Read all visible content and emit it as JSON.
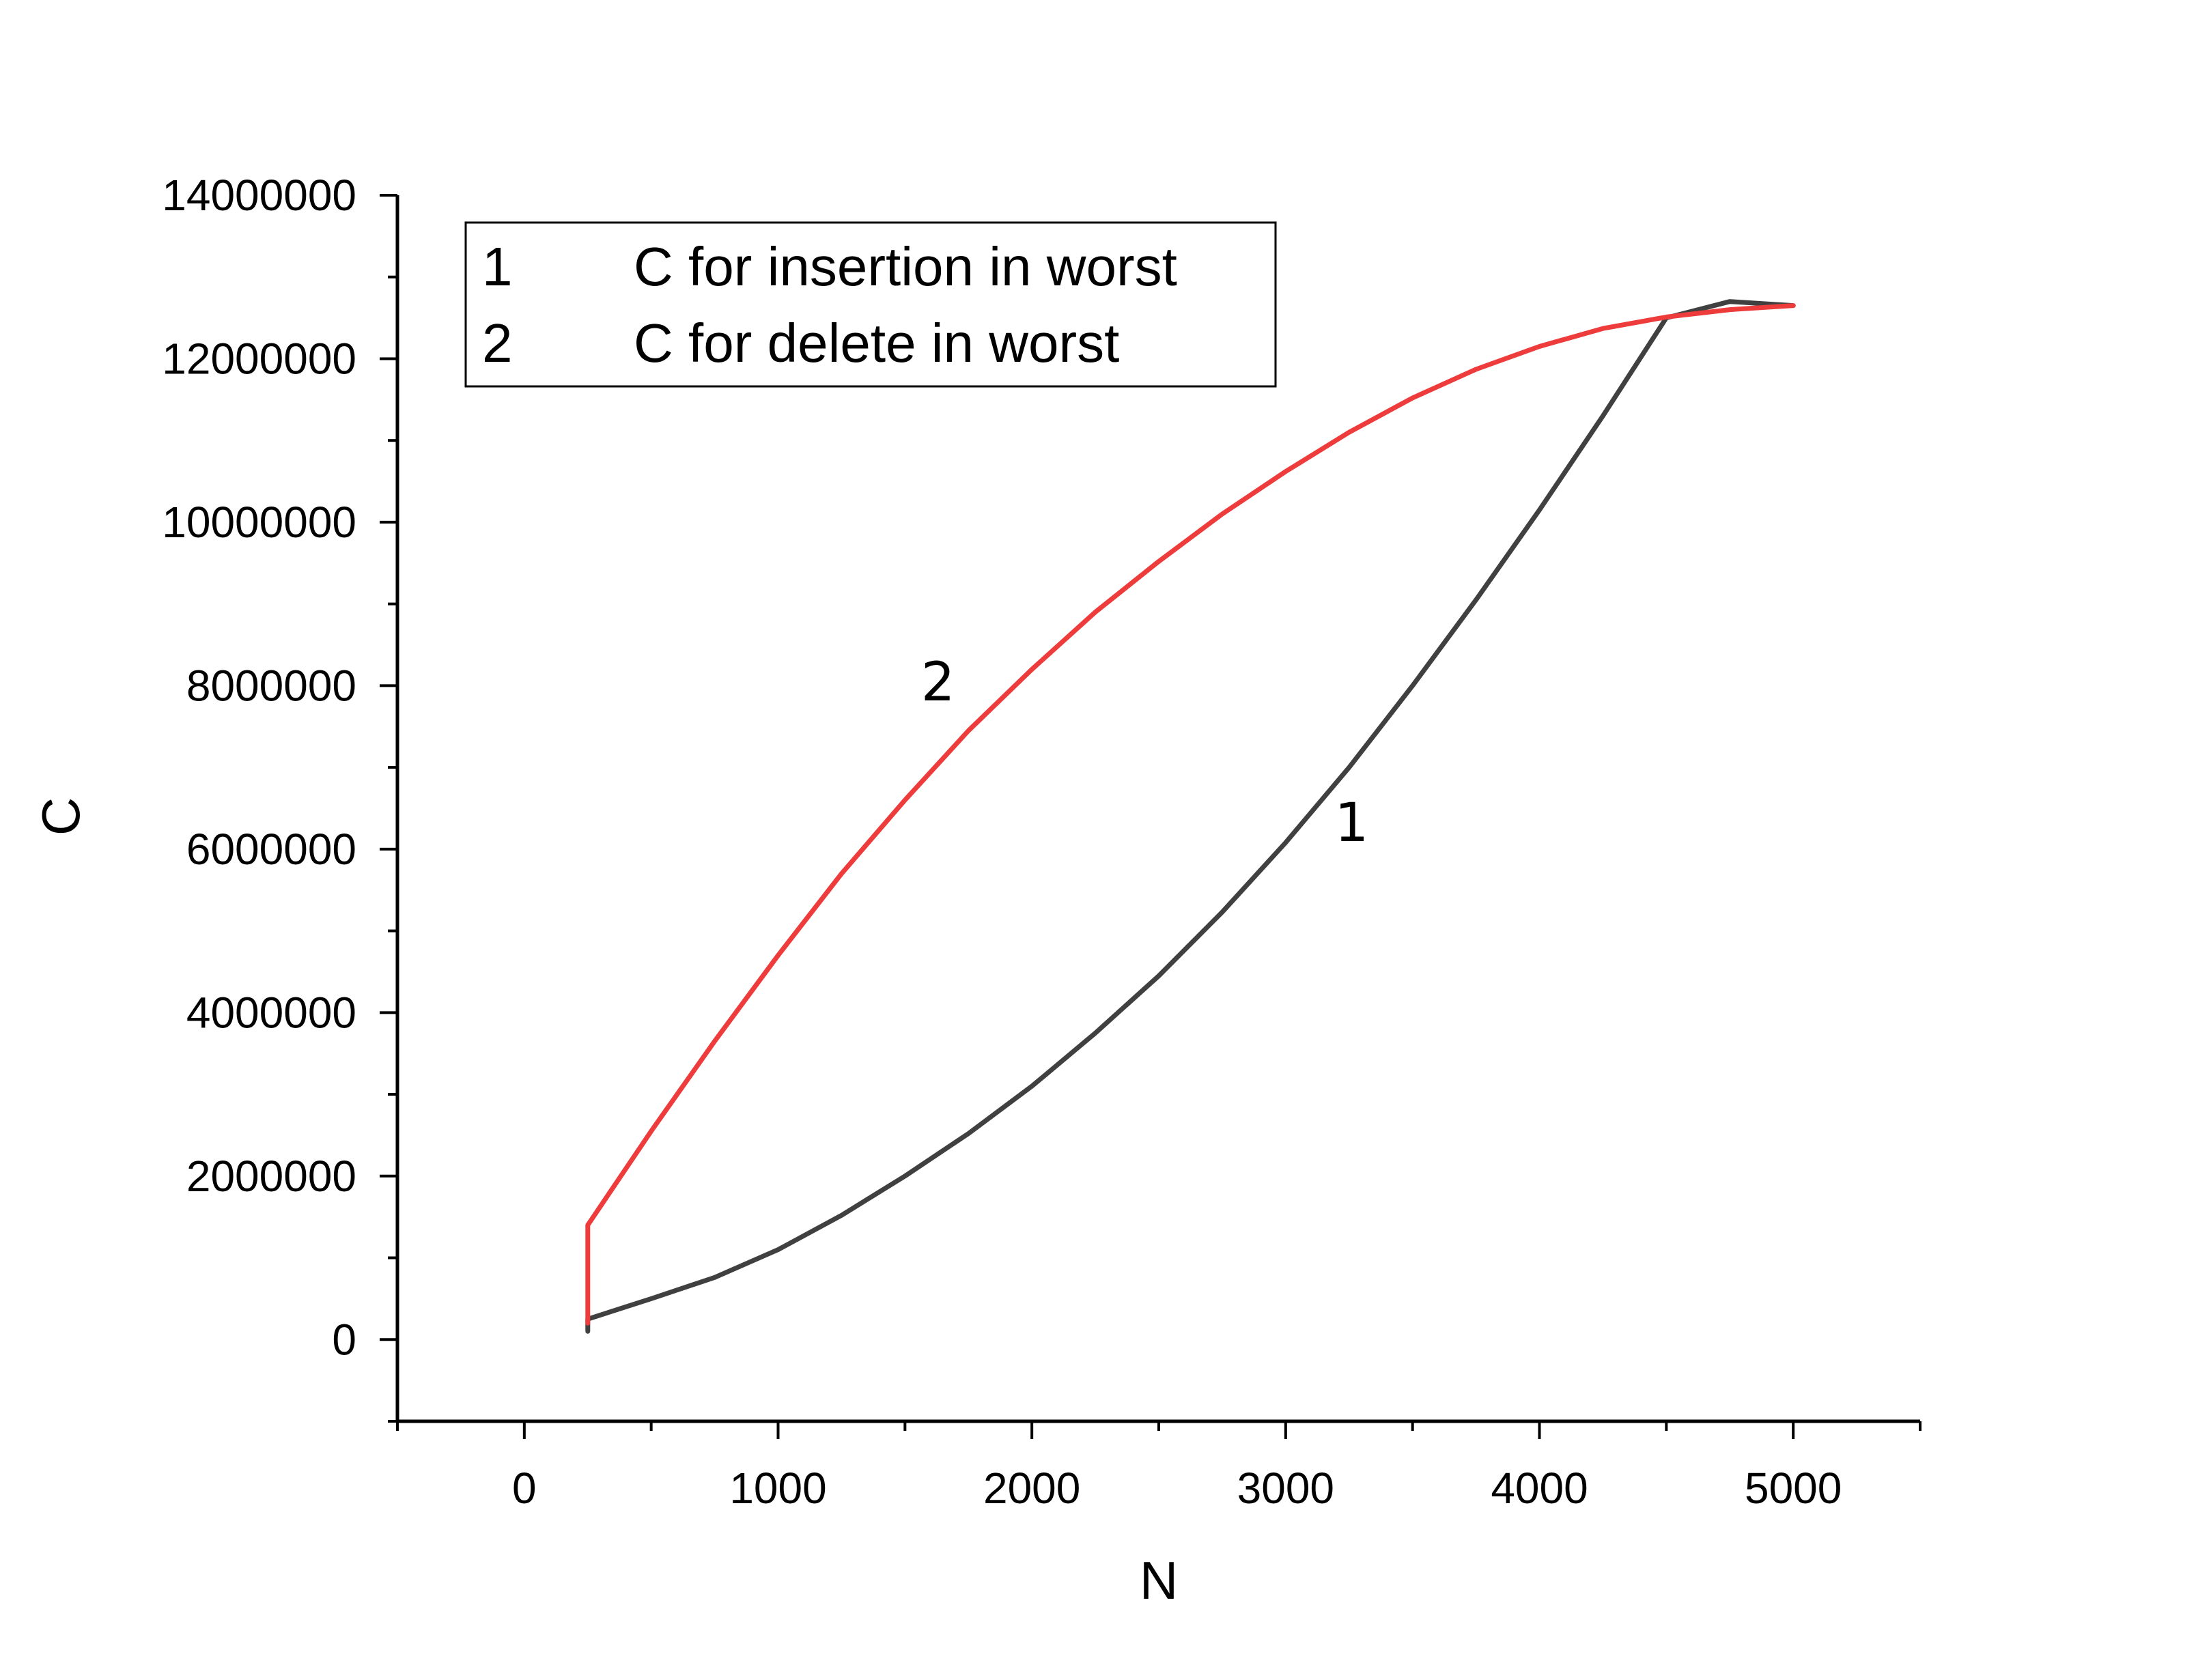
{
  "chart_data": {
    "type": "line",
    "xlabel": "N",
    "ylabel": "C",
    "xlim": [
      -500,
      5500
    ],
    "ylim": [
      -1000000,
      14000000
    ],
    "x_ticks": [
      0,
      1000,
      2000,
      3000,
      4000,
      5000
    ],
    "x_tick_labels": [
      "0",
      "1000",
      "2000",
      "3000",
      "4000",
      "5000"
    ],
    "y_ticks": [
      0,
      2000000,
      4000000,
      6000000,
      8000000,
      10000000,
      12000000,
      14000000
    ],
    "y_tick_labels": [
      "0",
      "2000000",
      "4000000",
      "6000000",
      "8000000",
      "10000000",
      "12000000",
      "14000000"
    ],
    "grid": false,
    "legend_position": "top-left",
    "series": [
      {
        "name": "C for insertion in worst",
        "legend_key": "1",
        "curve_label": "1",
        "color": "#404040",
        "points": [
          [
            250,
            100000
          ],
          [
            250,
            250000
          ],
          [
            500,
            500000
          ],
          [
            750,
            760000
          ],
          [
            1000,
            1100000
          ],
          [
            1250,
            1520000
          ],
          [
            1500,
            2000000
          ],
          [
            1750,
            2520000
          ],
          [
            2000,
            3100000
          ],
          [
            2250,
            3750000
          ],
          [
            2500,
            4450000
          ],
          [
            2750,
            5230000
          ],
          [
            3000,
            6080000
          ],
          [
            3250,
            7000000
          ],
          [
            3500,
            8000000
          ],
          [
            3750,
            9050000
          ],
          [
            4000,
            10150000
          ],
          [
            4250,
            11300000
          ],
          [
            4500,
            12500000
          ],
          [
            4750,
            12700000
          ],
          [
            5000,
            12650000
          ]
        ]
      },
      {
        "name": "C for delete in worst",
        "legend_key": "2",
        "curve_label": "2",
        "color": "#ee3b3b",
        "points": [
          [
            250,
            200000
          ],
          [
            250,
            1400000
          ],
          [
            500,
            2550000
          ],
          [
            750,
            3650000
          ],
          [
            1000,
            4700000
          ],
          [
            1250,
            5700000
          ],
          [
            1500,
            6600000
          ],
          [
            1750,
            7450000
          ],
          [
            2000,
            8200000
          ],
          [
            2250,
            8900000
          ],
          [
            2500,
            9520000
          ],
          [
            2750,
            10100000
          ],
          [
            3000,
            10620000
          ],
          [
            3250,
            11100000
          ],
          [
            3500,
            11520000
          ],
          [
            3750,
            11870000
          ],
          [
            4000,
            12150000
          ],
          [
            4250,
            12370000
          ],
          [
            4500,
            12510000
          ],
          [
            4750,
            12600000
          ],
          [
            5000,
            12650000
          ]
        ]
      }
    ]
  }
}
